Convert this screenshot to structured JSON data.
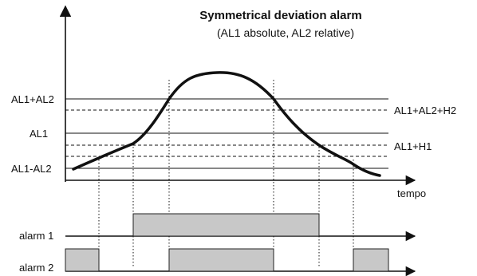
{
  "title": "Symmetrical deviation alarm",
  "subtitle": "(AL1 absolute, AL2 relative)",
  "levels": {
    "al1_plus_al2": "AL1+AL2",
    "al1": "AL1",
    "al1_minus_al2": "AL1-AL2"
  },
  "hysteresis": {
    "al1_al2_h2": "AL1+AL2+H2",
    "al1_h1": "AL1+H1"
  },
  "time_axis": {
    "label": "tempo"
  },
  "outputs": {
    "alarm1": "alarm 1",
    "alarm2": "alarm  2"
  },
  "colors": {
    "line": "#111111",
    "bar_fill": "#c8c8c8",
    "bar_stroke": "#222222"
  }
}
